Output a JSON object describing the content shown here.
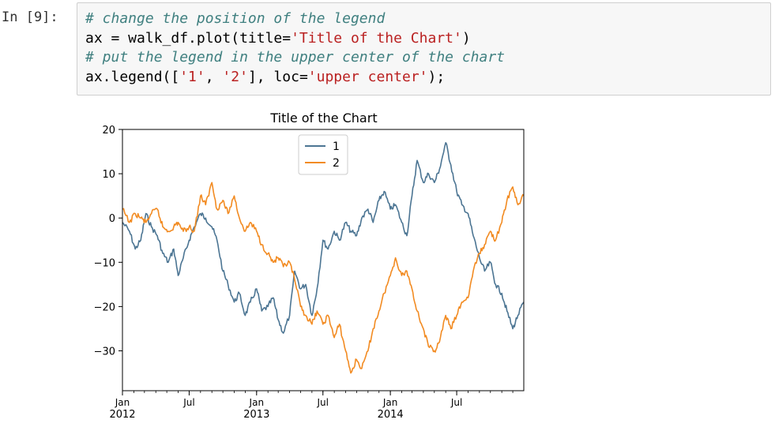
{
  "cell": {
    "prompt": "In [9]:",
    "lines": [
      {
        "parts": [
          {
            "t": "# change the position of the legend",
            "c": "cm"
          }
        ]
      },
      {
        "parts": [
          {
            "t": "ax = walk_df.plot(title=",
            "c": ""
          },
          {
            "t": "'Title of the Chart'",
            "c": "st"
          },
          {
            "t": ")",
            "c": ""
          }
        ]
      },
      {
        "parts": [
          {
            "t": "# put the legend in the upper center of the chart",
            "c": "cm"
          }
        ]
      },
      {
        "parts": [
          {
            "t": "ax.legend([",
            "c": ""
          },
          {
            "t": "'1'",
            "c": "st"
          },
          {
            "t": ", ",
            "c": ""
          },
          {
            "t": "'2'",
            "c": "st"
          },
          {
            "t": "], loc=",
            "c": ""
          },
          {
            "t": "'upper center'",
            "c": "st"
          },
          {
            "t": ");",
            "c": ""
          }
        ]
      }
    ]
  },
  "chart_data": {
    "type": "line",
    "title": "Title of the Chart",
    "xlabel": "",
    "ylabel": "",
    "ylim": [
      -39,
      20
    ],
    "xlim": [
      "2012-01-01",
      "2014-12-31"
    ],
    "grid": false,
    "legend_placement": "upper center",
    "y_ticks": [
      20,
      10,
      0,
      -10,
      -20,
      -30
    ],
    "y_tick_labels": [
      "20",
      "10",
      "0",
      "−10",
      "−20",
      "−30"
    ],
    "x_ticks": [
      {
        "date": "2012-01-01",
        "label": "Jan",
        "sub": "2012"
      },
      {
        "date": "2012-07-01",
        "label": "Jul",
        "sub": ""
      },
      {
        "date": "2013-01-01",
        "label": "Jan",
        "sub": "2013"
      },
      {
        "date": "2013-07-01",
        "label": "Jul",
        "sub": ""
      },
      {
        "date": "2014-01-01",
        "label": "Jan",
        "sub": "2014"
      },
      {
        "date": "2014-07-01",
        "label": "Jul",
        "sub": ""
      }
    ],
    "series": [
      {
        "name": "1",
        "color": "#4c7593",
        "points": [
          [
            "2012-01-01",
            -1
          ],
          [
            "2012-01-20",
            -3
          ],
          [
            "2012-02-05",
            -7
          ],
          [
            "2012-02-20",
            -5
          ],
          [
            "2012-03-05",
            1
          ],
          [
            "2012-03-20",
            -2
          ],
          [
            "2012-04-05",
            -4
          ],
          [
            "2012-04-20",
            -8
          ],
          [
            "2012-05-05",
            -10
          ],
          [
            "2012-05-20",
            -7
          ],
          [
            "2012-06-01",
            -13
          ],
          [
            "2012-06-15",
            -9
          ],
          [
            "2012-07-01",
            -5
          ],
          [
            "2012-07-15",
            -2
          ],
          [
            "2012-08-01",
            1
          ],
          [
            "2012-08-15",
            0
          ],
          [
            "2012-09-01",
            -2
          ],
          [
            "2012-09-15",
            -5
          ],
          [
            "2012-10-01",
            -12
          ],
          [
            "2012-10-15",
            -15
          ],
          [
            "2012-11-01",
            -19
          ],
          [
            "2012-11-15",
            -17
          ],
          [
            "2012-12-01",
            -22
          ],
          [
            "2012-12-15",
            -19
          ],
          [
            "2013-01-01",
            -16
          ],
          [
            "2013-01-15",
            -21
          ],
          [
            "2013-02-01",
            -20
          ],
          [
            "2013-02-15",
            -18
          ],
          [
            "2013-03-01",
            -23
          ],
          [
            "2013-03-15",
            -26
          ],
          [
            "2013-04-01",
            -22
          ],
          [
            "2013-04-15",
            -12
          ],
          [
            "2013-05-01",
            -16
          ],
          [
            "2013-05-15",
            -15
          ],
          [
            "2013-06-01",
            -22
          ],
          [
            "2013-06-15",
            -16
          ],
          [
            "2013-07-01",
            -5
          ],
          [
            "2013-07-15",
            -7
          ],
          [
            "2013-08-01",
            -3
          ],
          [
            "2013-08-15",
            -5
          ],
          [
            "2013-09-01",
            -1
          ],
          [
            "2013-09-15",
            -3
          ],
          [
            "2013-10-01",
            -4
          ],
          [
            "2013-10-15",
            0
          ],
          [
            "2013-11-01",
            2
          ],
          [
            "2013-11-15",
            -1
          ],
          [
            "2013-12-01",
            4
          ],
          [
            "2013-12-15",
            6
          ],
          [
            "2014-01-01",
            2
          ],
          [
            "2014-01-15",
            3
          ],
          [
            "2014-02-01",
            -1
          ],
          [
            "2014-02-15",
            -4
          ],
          [
            "2014-03-01",
            5
          ],
          [
            "2014-03-15",
            13
          ],
          [
            "2014-04-01",
            8
          ],
          [
            "2014-04-15",
            10
          ],
          [
            "2014-05-01",
            8
          ],
          [
            "2014-05-15",
            11
          ],
          [
            "2014-06-01",
            17
          ],
          [
            "2014-06-15",
            12
          ],
          [
            "2014-07-01",
            6
          ],
          [
            "2014-07-15",
            3
          ],
          [
            "2014-08-01",
            1
          ],
          [
            "2014-08-15",
            -4
          ],
          [
            "2014-09-01",
            -9
          ],
          [
            "2014-09-15",
            -12
          ],
          [
            "2014-10-01",
            -10
          ],
          [
            "2014-10-15",
            -15
          ],
          [
            "2014-11-01",
            -17
          ],
          [
            "2014-11-15",
            -21
          ],
          [
            "2014-12-01",
            -25
          ],
          [
            "2014-12-15",
            -22
          ],
          [
            "2014-12-31",
            -19
          ]
        ]
      },
      {
        "name": "2",
        "color": "#f28b22",
        "points": [
          [
            "2012-01-01",
            2
          ],
          [
            "2012-01-20",
            -1
          ],
          [
            "2012-02-05",
            1
          ],
          [
            "2012-02-20",
            0
          ],
          [
            "2012-03-05",
            -1
          ],
          [
            "2012-03-20",
            1
          ],
          [
            "2012-04-05",
            2
          ],
          [
            "2012-04-20",
            -2
          ],
          [
            "2012-05-05",
            -3
          ],
          [
            "2012-05-20",
            -2
          ],
          [
            "2012-06-01",
            -1
          ],
          [
            "2012-06-15",
            -3
          ],
          [
            "2012-07-01",
            -2
          ],
          [
            "2012-07-15",
            -3
          ],
          [
            "2012-08-01",
            5
          ],
          [
            "2012-08-15",
            3
          ],
          [
            "2012-09-01",
            8
          ],
          [
            "2012-09-15",
            2
          ],
          [
            "2012-10-01",
            4
          ],
          [
            "2012-10-15",
            1
          ],
          [
            "2012-11-01",
            5
          ],
          [
            "2012-11-15",
            0
          ],
          [
            "2012-12-01",
            -3
          ],
          [
            "2012-12-15",
            -1
          ],
          [
            "2013-01-01",
            -3
          ],
          [
            "2013-01-15",
            -6
          ],
          [
            "2013-02-01",
            -8
          ],
          [
            "2013-02-15",
            -10
          ],
          [
            "2013-03-01",
            -9
          ],
          [
            "2013-03-15",
            -11
          ],
          [
            "2013-04-01",
            -10
          ],
          [
            "2013-04-15",
            -14
          ],
          [
            "2013-05-01",
            -20
          ],
          [
            "2013-05-15",
            -22
          ],
          [
            "2013-06-01",
            -24
          ],
          [
            "2013-06-15",
            -21
          ],
          [
            "2013-07-01",
            -24
          ],
          [
            "2013-07-15",
            -22
          ],
          [
            "2013-08-01",
            -27
          ],
          [
            "2013-08-15",
            -24
          ],
          [
            "2013-09-01",
            -30
          ],
          [
            "2013-09-15",
            -35
          ],
          [
            "2013-10-01",
            -32
          ],
          [
            "2013-10-15",
            -34
          ],
          [
            "2013-11-01",
            -30
          ],
          [
            "2013-11-15",
            -25
          ],
          [
            "2013-12-01",
            -21
          ],
          [
            "2013-12-15",
            -17
          ],
          [
            "2014-01-01",
            -13
          ],
          [
            "2014-01-15",
            -9
          ],
          [
            "2014-02-01",
            -13
          ],
          [
            "2014-02-15",
            -12
          ],
          [
            "2014-03-01",
            -16
          ],
          [
            "2014-03-15",
            -21
          ],
          [
            "2014-04-01",
            -25
          ],
          [
            "2014-04-15",
            -29
          ],
          [
            "2014-05-01",
            -30
          ],
          [
            "2014-05-15",
            -28
          ],
          [
            "2014-06-01",
            -22
          ],
          [
            "2014-06-15",
            -25
          ],
          [
            "2014-07-01",
            -22
          ],
          [
            "2014-07-15",
            -19
          ],
          [
            "2014-08-01",
            -18
          ],
          [
            "2014-08-15",
            -12
          ],
          [
            "2014-09-01",
            -8
          ],
          [
            "2014-09-15",
            -6
          ],
          [
            "2014-10-01",
            -3
          ],
          [
            "2014-10-15",
            -5
          ],
          [
            "2014-11-01",
            -1
          ],
          [
            "2014-11-15",
            4
          ],
          [
            "2014-12-01",
            7
          ],
          [
            "2014-12-15",
            3
          ],
          [
            "2014-12-31",
            5
          ]
        ]
      }
    ]
  }
}
